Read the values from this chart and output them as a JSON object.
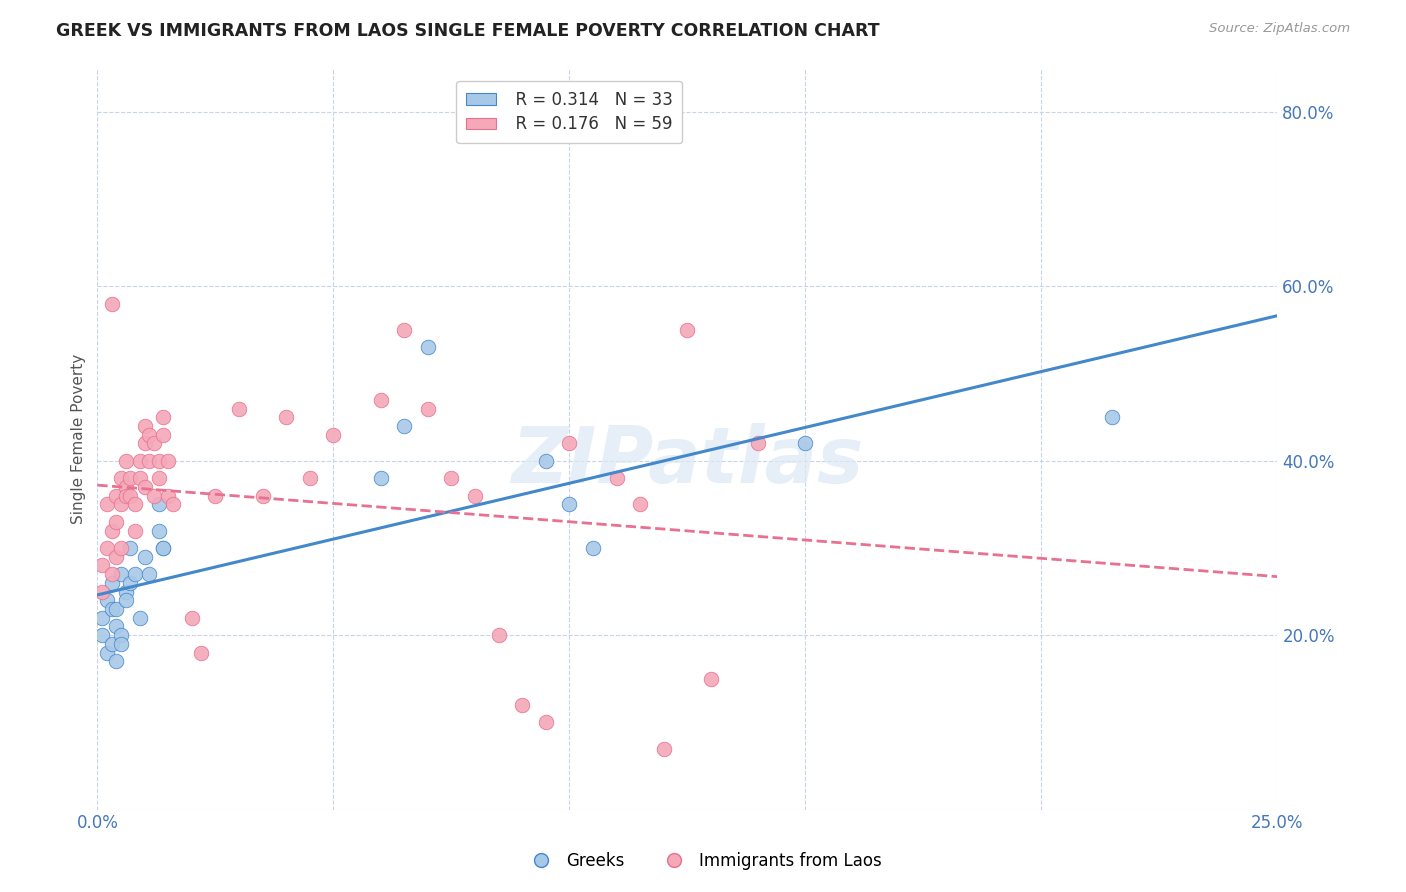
{
  "title": "GREEK VS IMMIGRANTS FROM LAOS SINGLE FEMALE POVERTY CORRELATION CHART",
  "source": "Source: ZipAtlas.com",
  "ylabel": "Single Female Poverty",
  "watermark": "ZIPatlas",
  "xlim": [
    0.0,
    0.25
  ],
  "ylim": [
    0.0,
    0.85
  ],
  "xticks": [
    0.0,
    0.05,
    0.1,
    0.15,
    0.2,
    0.25
  ],
  "yticks": [
    0.0,
    0.2,
    0.4,
    0.6,
    0.8
  ],
  "xtick_labels": [
    "0.0%",
    "",
    "",
    "",
    "",
    "25.0%"
  ],
  "ytick_labels": [
    "",
    "20.0%",
    "40.0%",
    "60.0%",
    "80.0%"
  ],
  "legend_r1": "R = 0.314",
  "legend_n1": "N = 33",
  "legend_r2": "R = 0.176",
  "legend_n2": "N = 59",
  "color_blue": "#a8c8e8",
  "color_pink": "#f4a8b8",
  "line_blue": "#4488cc",
  "line_pink": "#e87090",
  "background_color": "#ffffff",
  "grid_color": "#c8d4e8",
  "greeks_x": [
    0.001,
    0.001,
    0.002,
    0.002,
    0.003,
    0.003,
    0.003,
    0.004,
    0.004,
    0.004,
    0.005,
    0.005,
    0.005,
    0.006,
    0.006,
    0.007,
    0.007,
    0.008,
    0.009,
    0.01,
    0.011,
    0.013,
    0.013,
    0.014,
    0.014,
    0.06,
    0.065,
    0.07,
    0.095,
    0.1,
    0.105,
    0.15,
    0.215
  ],
  "greeks_y": [
    0.2,
    0.22,
    0.18,
    0.24,
    0.26,
    0.19,
    0.23,
    0.23,
    0.17,
    0.21,
    0.2,
    0.19,
    0.27,
    0.25,
    0.24,
    0.3,
    0.26,
    0.27,
    0.22,
    0.29,
    0.27,
    0.32,
    0.35,
    0.3,
    0.3,
    0.38,
    0.44,
    0.53,
    0.4,
    0.35,
    0.3,
    0.42,
    0.45
  ],
  "laos_x": [
    0.001,
    0.001,
    0.002,
    0.002,
    0.003,
    0.003,
    0.003,
    0.004,
    0.004,
    0.004,
    0.005,
    0.005,
    0.005,
    0.006,
    0.006,
    0.006,
    0.007,
    0.007,
    0.008,
    0.008,
    0.009,
    0.009,
    0.01,
    0.01,
    0.01,
    0.011,
    0.011,
    0.012,
    0.012,
    0.013,
    0.013,
    0.014,
    0.014,
    0.015,
    0.015,
    0.016,
    0.02,
    0.022,
    0.025,
    0.03,
    0.035,
    0.04,
    0.045,
    0.05,
    0.06,
    0.065,
    0.07,
    0.075,
    0.08,
    0.085,
    0.09,
    0.095,
    0.1,
    0.11,
    0.115,
    0.12,
    0.125,
    0.13,
    0.14
  ],
  "laos_y": [
    0.25,
    0.28,
    0.3,
    0.35,
    0.27,
    0.32,
    0.58,
    0.29,
    0.33,
    0.36,
    0.35,
    0.38,
    0.3,
    0.37,
    0.36,
    0.4,
    0.38,
    0.36,
    0.35,
    0.32,
    0.4,
    0.38,
    0.37,
    0.42,
    0.44,
    0.4,
    0.43,
    0.36,
    0.42,
    0.38,
    0.4,
    0.43,
    0.45,
    0.36,
    0.4,
    0.35,
    0.22,
    0.18,
    0.36,
    0.46,
    0.36,
    0.45,
    0.38,
    0.43,
    0.47,
    0.55,
    0.46,
    0.38,
    0.36,
    0.2,
    0.12,
    0.1,
    0.42,
    0.38,
    0.35,
    0.07,
    0.55,
    0.15,
    0.42
  ]
}
